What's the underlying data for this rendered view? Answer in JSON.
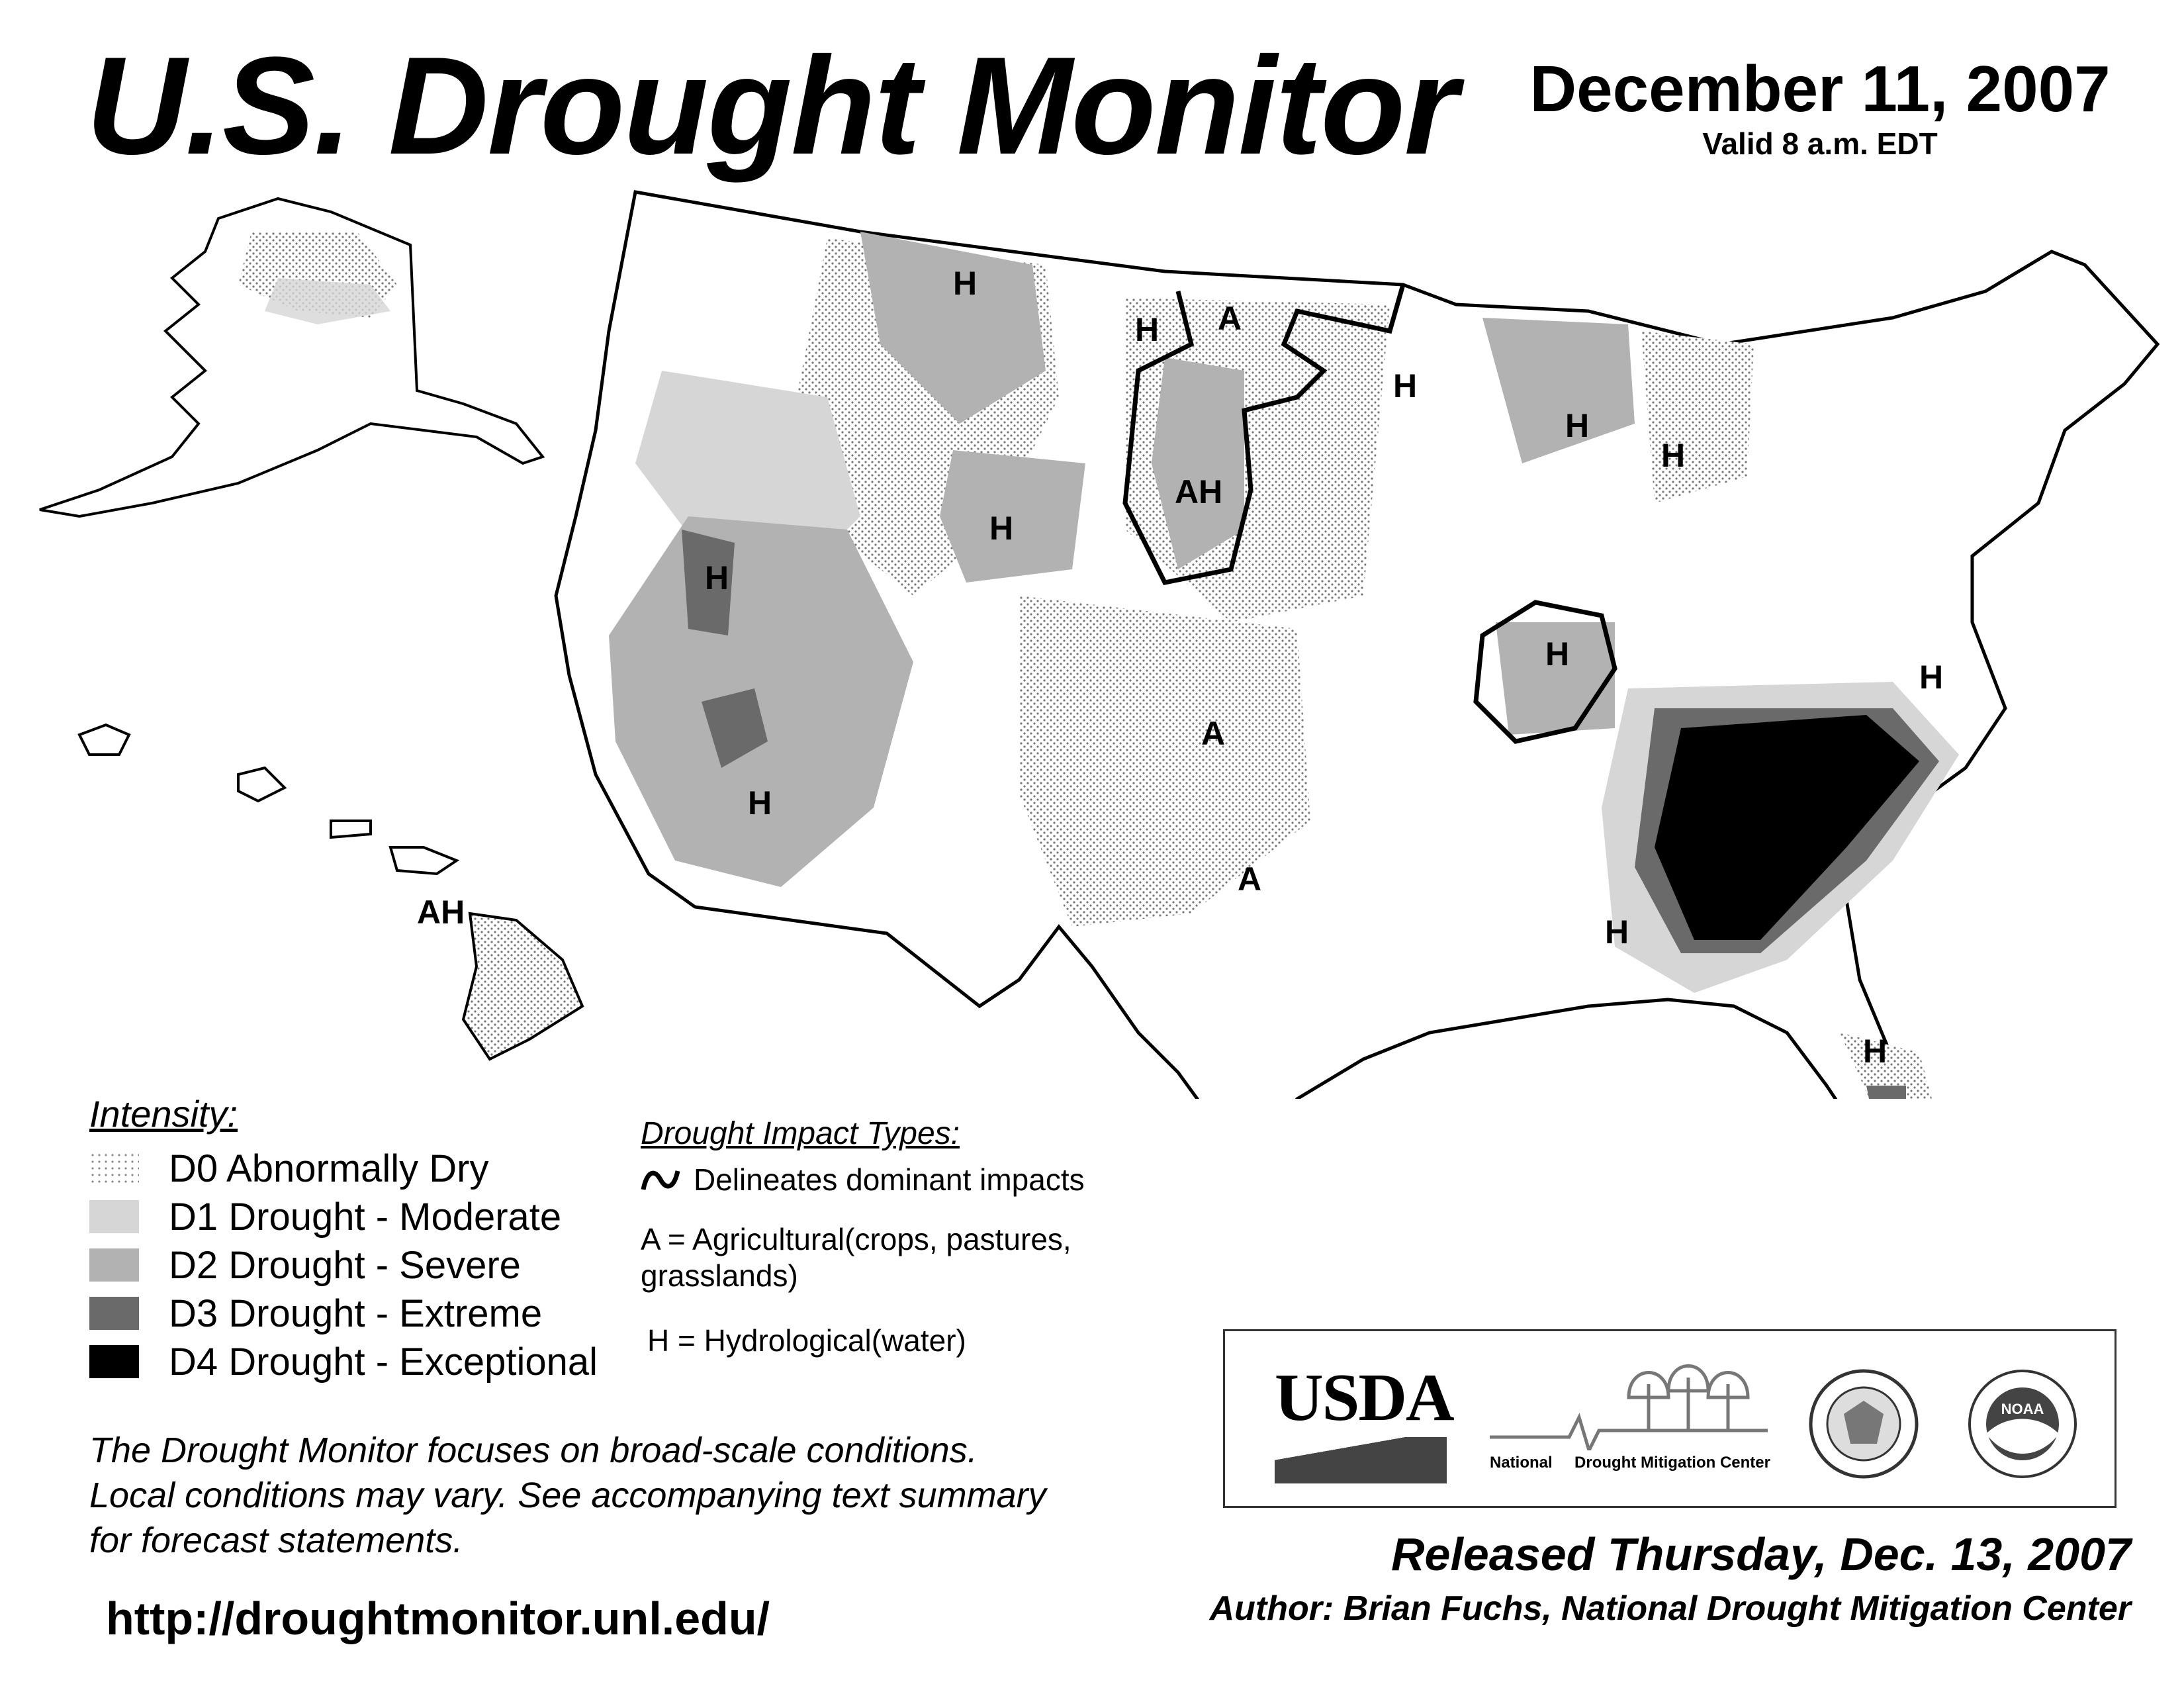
{
  "header": {
    "title": "U.S. Drought Monitor",
    "date": "December 11, 2007",
    "valid": "Valid 8 a.m. EDT"
  },
  "map": {
    "region_labels": [
      "H",
      "A",
      "H",
      "AH",
      "H",
      "H",
      "H",
      "H",
      "H",
      "H",
      "A",
      "A",
      "H",
      "H",
      "H",
      "H",
      "AH"
    ],
    "colors": {
      "background": "#ffffff",
      "land": "#ffffff",
      "outline": "#000000",
      "d0": "#e6e6e6",
      "d1": "#d6d6d6",
      "d2": "#b2b2b2",
      "d3": "#6a6a6a",
      "d4": "#000000"
    }
  },
  "legend": {
    "title": "Intensity:",
    "items": [
      {
        "code": "D0",
        "label": "D0 Abnormally Dry",
        "color": "#e6e6e6"
      },
      {
        "code": "D1",
        "label": "D1 Drought - Moderate",
        "color": "#d6d6d6"
      },
      {
        "code": "D2",
        "label": "D2 Drought - Severe",
        "color": "#b2b2b2"
      },
      {
        "code": "D3",
        "label": "D3 Drought - Extreme",
        "color": "#6a6a6a"
      },
      {
        "code": "D4",
        "label": "D4 Drought - Exceptional",
        "color": "#000000"
      }
    ]
  },
  "impacts": {
    "title": "Drought Impact Types:",
    "line_label": "Delineates dominant impacts",
    "agricultural_line1": "A = Agricultural(crops, pastures,",
    "agricultural_line2": "grasslands)",
    "hydrological": "H = Hydrological(water)"
  },
  "disclaimer": [
    "The Drought Monitor focuses on broad-scale conditions.",
    "Local conditions may vary. See accompanying text summary",
    "for forecast statements."
  ],
  "url": "http://droughtmonitor.unl.edu/",
  "logos": {
    "usda": "USDA",
    "ndmc": "National     Drought Mitigation Center",
    "noaa": "NOAA"
  },
  "footer": {
    "released": "Released Thursday, Dec. 13, 2007",
    "author": "Author: Brian Fuchs, National Drought Mitigation Center"
  }
}
